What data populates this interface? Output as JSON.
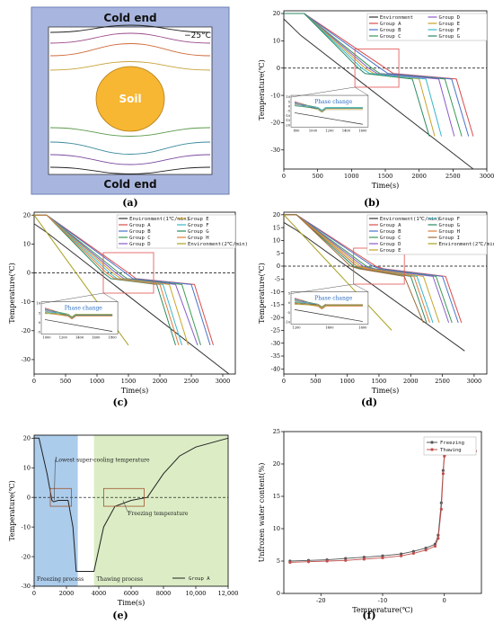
{
  "panel_labels": [
    "(a)",
    "(b)",
    "(c)",
    "(d)",
    "(e)",
    "(f)"
  ],
  "schematic": {
    "top_label": "Cold end",
    "bottom_label": "Cold end",
    "temp_label": "−25°C",
    "soil_label": "Soil",
    "colors": {
      "frame": "#a8b6df",
      "inner": "#ffffff",
      "soil": "#f7b733"
    }
  },
  "chart_data": [
    {
      "id": "b",
      "type": "line",
      "xlabel": "Time(s)",
      "ylabel": "Temperature(℃)",
      "xlim": [
        0,
        3000
      ],
      "ylim": [
        -37,
        21
      ],
      "xticks": [
        0,
        500,
        1000,
        1500,
        2000,
        2500,
        3000
      ],
      "yticks": [
        -30,
        -20,
        -10,
        0,
        10,
        20
      ],
      "xtick_labels": [
        "0",
        "500",
        "1000",
        "1500",
        "2000",
        "2500",
        "3000"
      ],
      "ytick_labels": [
        "-30",
        "-20",
        "-10",
        "0",
        "10",
        "20"
      ],
      "legend_columns": 2,
      "series": [
        {
          "name": "Environment",
          "color": "#333333",
          "x": [
            0,
            250,
            2800
          ],
          "y": [
            18,
            12,
            -37
          ]
        },
        {
          "name": "Group A",
          "color": "#d94c4c",
          "x": [
            0,
            300,
            1500,
            1620,
            2550,
            2800
          ],
          "y": [
            20,
            20,
            0,
            -2,
            -4,
            -25
          ]
        },
        {
          "name": "Group B",
          "color": "#4a72c9",
          "x": [
            0,
            300,
            1420,
            1540,
            2480,
            2730
          ],
          "y": [
            20,
            20,
            0,
            -2,
            -4,
            -25
          ]
        },
        {
          "name": "Group C",
          "color": "#3a9a55",
          "x": [
            0,
            300,
            1300,
            1420,
            2380,
            2630
          ],
          "y": [
            20,
            20,
            0,
            -2,
            -4,
            -25
          ]
        },
        {
          "name": "Group D",
          "color": "#8a5cc8",
          "x": [
            0,
            300,
            1250,
            1380,
            2290,
            2520
          ],
          "y": [
            20,
            20,
            0,
            -2,
            -4,
            -25
          ]
        },
        {
          "name": "Group E",
          "color": "#c9a227",
          "x": [
            0,
            300,
            1200,
            1330,
            2000,
            2230
          ],
          "y": [
            20,
            20,
            0,
            -2,
            -4,
            -25
          ]
        },
        {
          "name": "Group F",
          "color": "#38b7c9",
          "x": [
            0,
            300,
            1150,
            1270,
            2100,
            2330
          ],
          "y": [
            20,
            20,
            0,
            -2,
            -4,
            -25
          ]
        },
        {
          "name": "Group G",
          "color": "#2a8a62",
          "x": [
            0,
            300,
            1100,
            1200,
            1900,
            2150
          ],
          "y": [
            20,
            20,
            0,
            -2,
            -4,
            -25
          ]
        }
      ],
      "annotations": [
        {
          "text": "Phase change"
        }
      ],
      "inset": {
        "xtick_labels": [
          "800",
          "1000",
          "1200",
          "1400",
          "1600"
        ],
        "ytick_labels": [
          "10",
          "5",
          "0",
          "-5",
          "-10",
          "-15",
          "-20"
        ]
      }
    },
    {
      "id": "c",
      "type": "line",
      "xlabel": "Time(s)",
      "ylabel": "Temperature(℃)",
      "xlim": [
        0,
        3200
      ],
      "ylim": [
        -35,
        21
      ],
      "xticks": [
        0,
        500,
        1000,
        1500,
        2000,
        2500,
        3000
      ],
      "yticks": [
        -30,
        -20,
        -10,
        0,
        10,
        20
      ],
      "xtick_labels": [
        "0",
        "500",
        "1000",
        "1500",
        "2000",
        "2500",
        "3000"
      ],
      "ytick_labels": [
        "-30",
        "-20",
        "-10",
        "0",
        "10",
        "20"
      ],
      "legend_columns": 2,
      "series": [
        {
          "name": "Environment(1℃/min)",
          "color": "#333333",
          "x": [
            0,
            200,
            3100
          ],
          "y": [
            17,
            14,
            -35
          ]
        },
        {
          "name": "Group A",
          "color": "#d94c4c",
          "x": [
            0,
            200,
            1500,
            1620,
            2550,
            2850
          ],
          "y": [
            20,
            20,
            0,
            -2,
            -4,
            -25
          ]
        },
        {
          "name": "Group B",
          "color": "#4a72c9",
          "x": [
            0,
            200,
            1450,
            1570,
            2500,
            2800
          ],
          "y": [
            20,
            20,
            0,
            -2,
            -4,
            -25
          ]
        },
        {
          "name": "Group C",
          "color": "#3a9a55",
          "x": [
            0,
            200,
            1350,
            1480,
            2350,
            2650
          ],
          "y": [
            20,
            20,
            0,
            -2,
            -4,
            -25
          ]
        },
        {
          "name": "Group D",
          "color": "#8a5cc8",
          "x": [
            0,
            200,
            1300,
            1430,
            2250,
            2600
          ],
          "y": [
            20,
            20,
            0,
            -2,
            -4,
            -25
          ]
        },
        {
          "name": "Group E",
          "color": "#c9a227",
          "x": [
            0,
            200,
            1250,
            1380,
            2150,
            2450
          ],
          "y": [
            20,
            20,
            0,
            -2,
            -4,
            -25
          ]
        },
        {
          "name": "Group F",
          "color": "#38b7c9",
          "x": [
            0,
            200,
            1200,
            1320,
            2050,
            2350
          ],
          "y": [
            20,
            20,
            0,
            -2,
            -4,
            -25
          ]
        },
        {
          "name": "Group G",
          "color": "#2a8a62",
          "x": [
            0,
            200,
            1100,
            1220,
            1950,
            2250
          ],
          "y": [
            20,
            20,
            0,
            -2,
            -4,
            -25
          ]
        },
        {
          "name": "Group H",
          "color": "#e07b39",
          "x": [
            0,
            200,
            1150,
            1280,
            2000,
            2300
          ],
          "y": [
            20,
            20,
            0,
            -2,
            -4,
            -25
          ]
        },
        {
          "name": "Environment(2℃/min)",
          "color": "#a8a020",
          "x": [
            0,
            1500
          ],
          "y": [
            20,
            -25
          ]
        }
      ],
      "annotations": [
        {
          "text": "Phase change"
        }
      ],
      "inset": {
        "xtick_labels": [
          "1000",
          "1200",
          "1400",
          "1600",
          "1800"
        ],
        "ytick_labels": [
          "10",
          "5",
          "0",
          "-5"
        ]
      }
    },
    {
      "id": "d",
      "type": "line",
      "xlabel": "Time(s)",
      "ylabel": "Temperature(℃)",
      "xlim": [
        0,
        3200
      ],
      "ylim": [
        -42,
        21
      ],
      "xticks": [
        0,
        500,
        1000,
        1500,
        2000,
        2500,
        3000
      ],
      "yticks": [
        -40,
        -35,
        -30,
        -25,
        -20,
        -15,
        -10,
        -5,
        0,
        5,
        10,
        15,
        20
      ],
      "xtick_labels": [
        "0",
        "500",
        "1000",
        "1500",
        "2000",
        "2500",
        "3000"
      ],
      "ytick_labels": [
        "-40",
        "-35",
        "-30",
        "-25",
        "-20",
        "-15",
        "-10",
        "-5",
        "0",
        "5",
        "10",
        "15",
        "20"
      ],
      "legend_columns": 2,
      "series": [
        {
          "name": "Environment(1℃/min)",
          "color": "#333333",
          "x": [
            0,
            200,
            2850
          ],
          "y": [
            17,
            14,
            -33
          ]
        },
        {
          "name": "Group A",
          "color": "#d94c4c",
          "x": [
            0,
            200,
            1450,
            1570,
            2550,
            2800
          ],
          "y": [
            20,
            20,
            0,
            -1,
            -4,
            -22
          ]
        },
        {
          "name": "Group B",
          "color": "#4a72c9",
          "x": [
            0,
            200,
            1400,
            1520,
            2500,
            2750
          ],
          "y": [
            20,
            20,
            0,
            -1,
            -4,
            -22
          ]
        },
        {
          "name": "Group C",
          "color": "#3a9a55",
          "x": [
            0,
            200,
            1300,
            1430,
            2400,
            2650
          ],
          "y": [
            20,
            20,
            0,
            -1,
            -4,
            -22
          ]
        },
        {
          "name": "Group D",
          "color": "#8a5cc8",
          "x": [
            0,
            200,
            1250,
            1380,
            2350,
            2600
          ],
          "y": [
            20,
            20,
            0,
            -1,
            -4,
            -22
          ]
        },
        {
          "name": "Group E",
          "color": "#c9a227",
          "x": [
            0,
            200,
            1200,
            1330,
            2200,
            2450
          ],
          "y": [
            20,
            20,
            0,
            -1,
            -4,
            -22
          ]
        },
        {
          "name": "Group F",
          "color": "#38b7c9",
          "x": [
            0,
            200,
            1150,
            1280,
            2100,
            2350
          ],
          "y": [
            20,
            20,
            0,
            -1,
            -4,
            -22
          ]
        },
        {
          "name": "Group G",
          "color": "#2a8a62",
          "x": [
            0,
            200,
            1100,
            1230,
            2000,
            2250
          ],
          "y": [
            20,
            20,
            0,
            -1,
            -4,
            -22
          ]
        },
        {
          "name": "Group H",
          "color": "#e07b39",
          "x": [
            0,
            200,
            1150,
            1280,
            2050,
            2300
          ],
          "y": [
            20,
            20,
            0,
            -1,
            -4,
            -22
          ]
        },
        {
          "name": "Group I",
          "color": "#9b6b3a",
          "x": [
            0,
            200,
            1050,
            1180,
            1900,
            2200
          ],
          "y": [
            20,
            20,
            0,
            -1,
            -4,
            -22
          ]
        },
        {
          "name": "Environment(2℃/min)",
          "color": "#a8a020",
          "x": [
            0,
            1700
          ],
          "y": [
            20,
            -25
          ]
        }
      ],
      "annotations": [
        {
          "text": "Phase change"
        }
      ],
      "inset": {
        "xtick_labels": [
          "1200",
          "1400",
          "1600"
        ],
        "ytick_labels": [
          "5",
          "0",
          "-5",
          "-10"
        ]
      }
    },
    {
      "id": "e",
      "type": "line",
      "xlabel": "Time(s)",
      "ylabel": "Temperature(℃)",
      "xlim": [
        0,
        12000
      ],
      "ylim": [
        -30,
        21
      ],
      "xticks": [
        0,
        2000,
        4000,
        6000,
        8000,
        10000,
        12000
      ],
      "yticks": [
        -30,
        -20,
        -10,
        0,
        10,
        20
      ],
      "xtick_labels": [
        "0",
        "2000",
        "4000",
        "6000",
        "8000",
        "10,000",
        "12,000"
      ],
      "ytick_labels": [
        "-30",
        "-20",
        "-10",
        "0",
        "10",
        "20"
      ],
      "series": [
        {
          "name": "Group A",
          "color": "#222222",
          "x": [
            0,
            300,
            800,
            1100,
            1200,
            1500,
            2100,
            2400,
            2600,
            3500,
            3700,
            4300,
            5000,
            6000,
            7000,
            8000,
            9000,
            10000,
            12000
          ],
          "y": [
            20,
            20,
            8,
            -1,
            -1.5,
            -1,
            -1,
            -10,
            -25,
            -25,
            -25,
            -10,
            -3,
            -1,
            0,
            8,
            14,
            17,
            20
          ]
        }
      ],
      "regions": [
        {
          "label": "Freezing process",
          "x0": 0,
          "x1": 2700,
          "color": "#7fb0e0"
        },
        {
          "label": "Thawing process",
          "x0": 3700,
          "x1": 12000,
          "color": "#c9e3a6"
        }
      ],
      "annotations": [
        {
          "text": "Lowest super-cooling temperature",
          "x": 1250,
          "y": -1
        },
        {
          "text": "Freezing temperature",
          "x": 5500,
          "y": -1
        }
      ]
    },
    {
      "id": "f",
      "type": "line",
      "xlabel": "Temperature(℃)",
      "ylabel": "Unfrozen water content(%)",
      "xlim": [
        -26,
        6
      ],
      "ylim": [
        0,
        25
      ],
      "xticks": [
        -20,
        -10,
        0
      ],
      "yticks": [
        0,
        5,
        10,
        15,
        20,
        25
      ],
      "xtick_labels": [
        "-20",
        "-10",
        "0"
      ],
      "ytick_labels": [
        "0",
        "5",
        "10",
        "15",
        "20",
        "25"
      ],
      "series": [
        {
          "name": "Freezing",
          "color": "#555555",
          "x": [
            -25,
            -22,
            -19,
            -16,
            -13,
            -10,
            -7,
            -5,
            -3,
            -1.5,
            -1,
            -0.5,
            -0.2,
            0,
            0.5,
            1,
            2,
            3,
            5
          ],
          "y": [
            5,
            5.1,
            5.2,
            5.4,
            5.6,
            5.8,
            6.1,
            6.5,
            7,
            7.6,
            9,
            14,
            19,
            21.5,
            21.8,
            21.9,
            22,
            22,
            22
          ]
        },
        {
          "name": "Thawing",
          "color": "#c0504d",
          "x": [
            -25,
            -22,
            -19,
            -16,
            -13,
            -10,
            -7,
            -5,
            -3,
            -1.5,
            -1,
            -0.5,
            -0.2,
            0,
            0.5,
            1,
            2,
            3,
            5
          ],
          "y": [
            4.8,
            4.9,
            5,
            5.1,
            5.3,
            5.5,
            5.8,
            6.2,
            6.7,
            7.3,
            8.5,
            13,
            18.5,
            21.2,
            21.6,
            21.8,
            21.9,
            22,
            22
          ]
        }
      ]
    }
  ]
}
